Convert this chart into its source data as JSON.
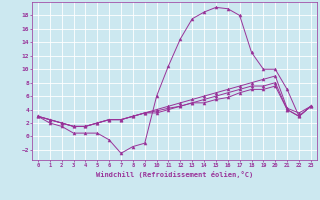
{
  "xlabel": "Windchill (Refroidissement éolien,°C)",
  "xlim": [
    -0.5,
    23.5
  ],
  "ylim": [
    -3.5,
    20.0
  ],
  "yticks": [
    -2,
    0,
    2,
    4,
    6,
    8,
    10,
    12,
    14,
    16,
    18
  ],
  "xticks": [
    0,
    1,
    2,
    3,
    4,
    5,
    6,
    7,
    8,
    9,
    10,
    11,
    12,
    13,
    14,
    15,
    16,
    17,
    18,
    19,
    20,
    21,
    22,
    23
  ],
  "bg_color": "#cce8f0",
  "line_color": "#993399",
  "grid_color": "#ffffff",
  "lines": [
    {
      "x": [
        0,
        1,
        2,
        3,
        4,
        5,
        6,
        7,
        8,
        9,
        10,
        11,
        12,
        13,
        14,
        15,
        16,
        17,
        18,
        19,
        20,
        21,
        22,
        23
      ],
      "y": [
        3,
        2,
        1.5,
        0.5,
        0.5,
        0.5,
        -0.5,
        -2.5,
        -1.5,
        -1.0,
        6.0,
        10.5,
        14.5,
        17.5,
        18.5,
        19.2,
        19.0,
        18.0,
        12.5,
        10.0,
        10.0,
        7.0,
        3.0,
        4.5
      ]
    },
    {
      "x": [
        0,
        1,
        2,
        3,
        4,
        5,
        6,
        7,
        8,
        9,
        10,
        11,
        12,
        13,
        14,
        15,
        16,
        17,
        18,
        19,
        20,
        21,
        22,
        23
      ],
      "y": [
        3,
        2.5,
        2.0,
        1.5,
        1.5,
        2.0,
        2.5,
        2.5,
        3.0,
        3.5,
        4.0,
        4.5,
        5.0,
        5.5,
        6.0,
        6.5,
        7.0,
        7.5,
        8.0,
        8.5,
        9.0,
        4.2,
        3.5,
        4.5
      ]
    },
    {
      "x": [
        0,
        1,
        2,
        3,
        4,
        5,
        6,
        7,
        8,
        9,
        10,
        11,
        12,
        13,
        14,
        15,
        16,
        17,
        18,
        19,
        20,
        21,
        22,
        23
      ],
      "y": [
        3,
        2.5,
        2.0,
        1.5,
        1.5,
        2.0,
        2.5,
        2.5,
        3.0,
        3.5,
        3.8,
        4.2,
        4.5,
        5.0,
        5.5,
        6.0,
        6.5,
        7.0,
        7.5,
        7.5,
        8.0,
        4.0,
        3.0,
        4.5
      ]
    },
    {
      "x": [
        0,
        1,
        2,
        3,
        4,
        5,
        6,
        7,
        8,
        9,
        10,
        11,
        12,
        13,
        14,
        15,
        16,
        17,
        18,
        19,
        20,
        21,
        22,
        23
      ],
      "y": [
        3,
        2.5,
        2.0,
        1.5,
        1.5,
        2.0,
        2.5,
        2.5,
        3.0,
        3.5,
        3.5,
        4.0,
        4.5,
        5.0,
        5.0,
        5.5,
        5.8,
        6.5,
        7.0,
        7.0,
        7.5,
        4.0,
        3.0,
        4.5
      ]
    }
  ]
}
